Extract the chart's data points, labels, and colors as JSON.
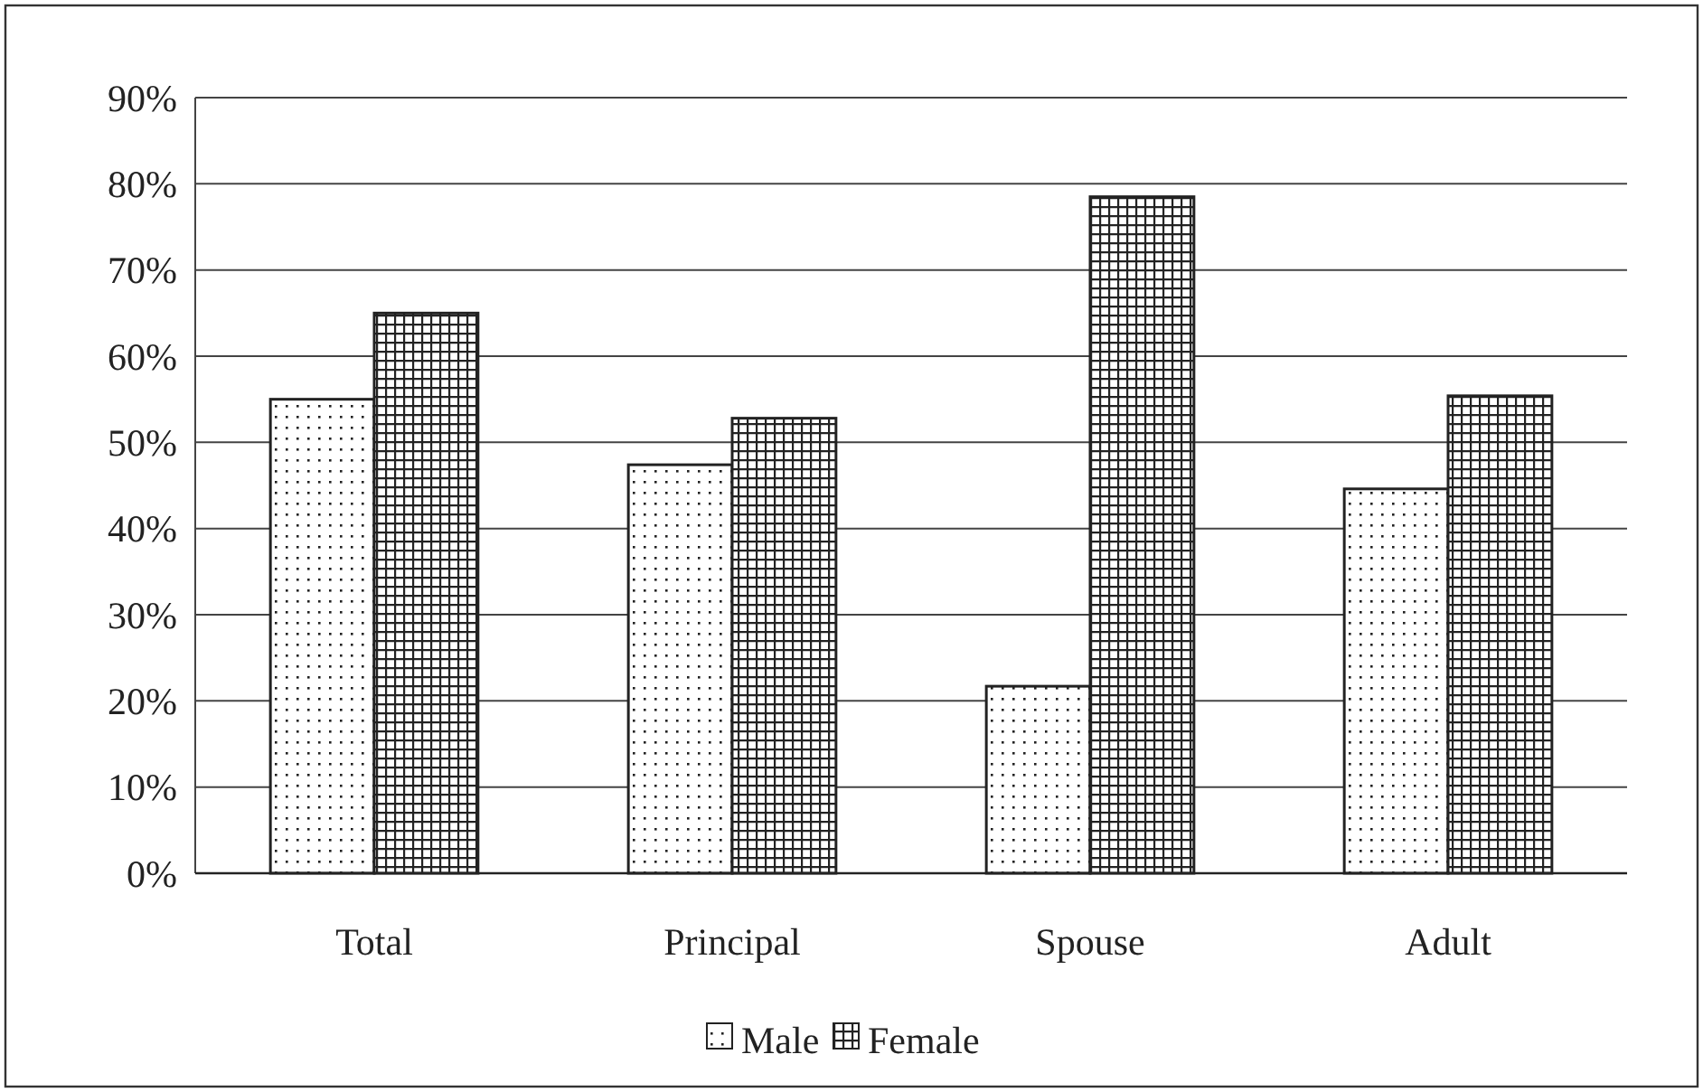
{
  "chart_data": {
    "type": "bar",
    "categories": [
      "Total",
      "Principal",
      "Spouse",
      "Adult"
    ],
    "series": [
      {
        "name": "Male",
        "color": "#222222",
        "values": [
          55,
          47.4,
          21.7,
          44.6
        ]
      },
      {
        "name": "Female",
        "color": "#222222",
        "values": [
          65,
          52.8,
          78.5,
          55.4
        ]
      }
    ],
    "ylim": [
      0,
      90
    ],
    "yticks": [
      {
        "value": 0,
        "label": "0%"
      },
      {
        "value": 10,
        "label": "10%"
      },
      {
        "value": 20,
        "label": "20%"
      },
      {
        "value": 30,
        "label": "30%"
      },
      {
        "value": 40,
        "label": "40%"
      },
      {
        "value": 50,
        "label": "50%"
      },
      {
        "value": 60,
        "label": "60%"
      },
      {
        "value": 70,
        "label": "70%"
      },
      {
        "value": 80,
        "label": "80%"
      },
      {
        "value": 90,
        "label": "90%"
      }
    ],
    "grid": "y",
    "legend": "bottom"
  }
}
